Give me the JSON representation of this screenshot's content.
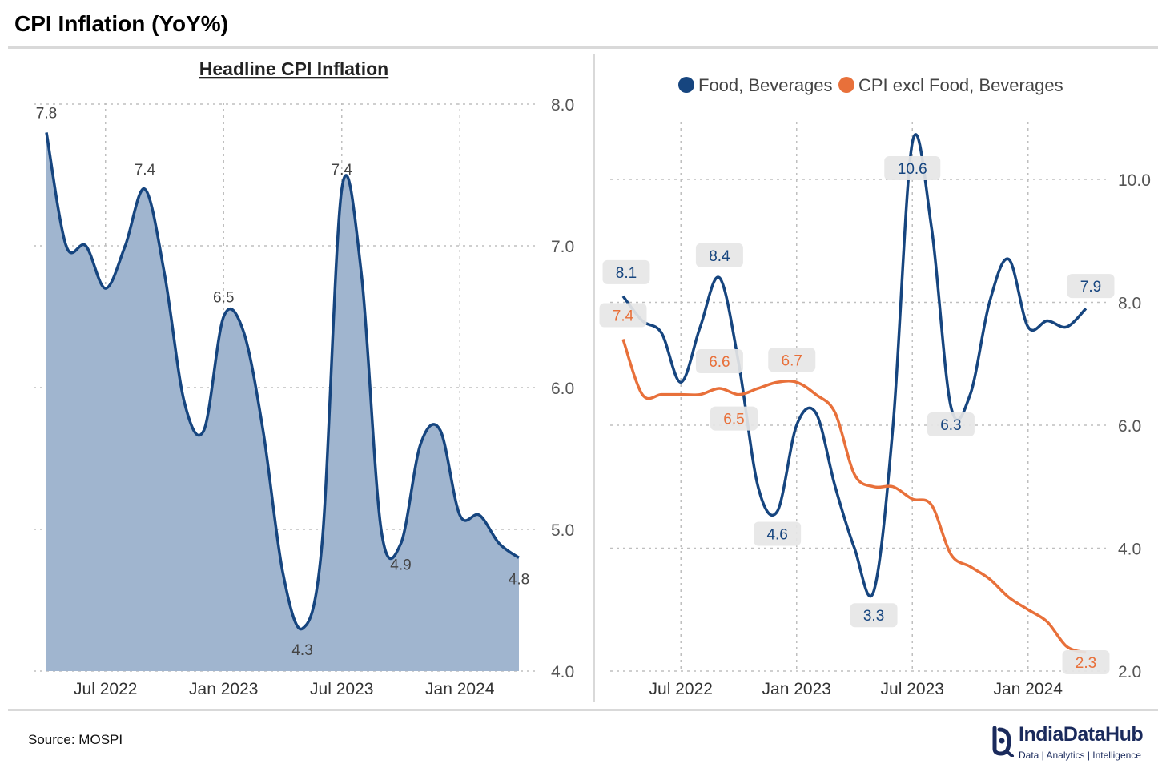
{
  "title": "CPI Inflation (YoY%)",
  "source": "Source: MOSPI",
  "brand": {
    "name": "IndiaDataHub",
    "tagline": "Data | Analytics | Intelligence"
  },
  "colors": {
    "navy": "#16457f",
    "orange": "#e8703a",
    "area_fill": "#a0b5cf",
    "grid": "#bfbfbf",
    "label_bg": "#e6e6e6",
    "tick_text": "#555555"
  },
  "chart_data": [
    {
      "type": "area",
      "title": "Headline CPI Inflation",
      "xlabel": "",
      "ylabel": "",
      "x": [
        "2022-04",
        "2022-05",
        "2022-06",
        "2022-07",
        "2022-08",
        "2022-09",
        "2022-10",
        "2022-11",
        "2022-12",
        "2023-01",
        "2023-02",
        "2023-03",
        "2023-04",
        "2023-05",
        "2023-06",
        "2023-07",
        "2023-08",
        "2023-09",
        "2023-10",
        "2023-11",
        "2023-12",
        "2024-01",
        "2024-02",
        "2024-03",
        "2024-04"
      ],
      "series": [
        {
          "values": [
            7.8,
            7.0,
            7.0,
            6.7,
            7.0,
            7.4,
            6.8,
            5.9,
            5.7,
            6.5,
            6.4,
            5.7,
            4.7,
            4.3,
            4.9,
            7.4,
            6.8,
            5.0,
            4.9,
            5.6,
            5.7,
            5.1,
            5.1,
            4.9,
            4.8
          ]
        }
      ],
      "data_labels": [
        {
          "x": "2022-04",
          "text": "7.8"
        },
        {
          "x": "2022-09",
          "text": "7.4"
        },
        {
          "x": "2023-01",
          "text": "6.5"
        },
        {
          "x": "2023-05",
          "text": "4.3"
        },
        {
          "x": "2023-07",
          "text": "7.4"
        },
        {
          "x": "2023-10",
          "text": "4.9"
        },
        {
          "x": "2024-04",
          "text": "4.8"
        }
      ],
      "x_ticks": [
        "Jul 2022",
        "Jan 2023",
        "Jul 2023",
        "Jan 2024"
      ],
      "y_ticks": [
        "4.0",
        "5.0",
        "6.0",
        "7.0",
        "8.0"
      ],
      "ylim": [
        4.0,
        8.0
      ],
      "y_axis_side": "right",
      "grid": true
    },
    {
      "type": "line",
      "legend_position": "top",
      "x": [
        "2022-04",
        "2022-05",
        "2022-06",
        "2022-07",
        "2022-08",
        "2022-09",
        "2022-10",
        "2022-11",
        "2022-12",
        "2023-01",
        "2023-02",
        "2023-03",
        "2023-04",
        "2023-05",
        "2023-06",
        "2023-07",
        "2023-08",
        "2023-09",
        "2023-10",
        "2023-11",
        "2023-12",
        "2024-01",
        "2024-02",
        "2024-03",
        "2024-04"
      ],
      "series": [
        {
          "name": "Food, Beverages",
          "color": "#16457f",
          "values": [
            8.1,
            7.7,
            7.5,
            6.7,
            7.6,
            8.4,
            7.0,
            5.0,
            4.6,
            6.0,
            6.2,
            5.0,
            4.0,
            3.3,
            6.0,
            10.6,
            9.2,
            6.3,
            6.5,
            8.0,
            8.7,
            7.6,
            7.7,
            7.6,
            7.9
          ],
          "data_labels": [
            {
              "x": "2022-04",
              "text": "8.1"
            },
            {
              "x": "2022-09",
              "text": "8.4"
            },
            {
              "x": "2022-12",
              "text": "4.6"
            },
            {
              "x": "2023-05",
              "text": "3.3"
            },
            {
              "x": "2023-07",
              "text": "10.6"
            },
            {
              "x": "2023-09",
              "text": "6.3"
            },
            {
              "x": "2024-04",
              "text": "7.9"
            }
          ]
        },
        {
          "name": "CPI excl Food, Beverages",
          "color": "#e8703a",
          "values": [
            7.4,
            6.5,
            6.5,
            6.5,
            6.5,
            6.6,
            6.5,
            6.6,
            6.7,
            6.7,
            6.5,
            6.2,
            5.2,
            5.0,
            5.0,
            4.8,
            4.7,
            3.9,
            3.7,
            3.5,
            3.2,
            3.0,
            2.8,
            2.4,
            2.3
          ],
          "data_labels": [
            {
              "x": "2022-04",
              "text": "7.4"
            },
            {
              "x": "2022-09",
              "text": "6.6"
            },
            {
              "x": "2022-10",
              "text": "6.5"
            },
            {
              "x": "2023-01",
              "text": "6.7"
            },
            {
              "x": "2024-04",
              "text": "2.3"
            }
          ]
        }
      ],
      "x_ticks": [
        "Jul 2022",
        "Jan 2023",
        "Jul 2023",
        "Jan 2024"
      ],
      "y_ticks": [
        "2.0",
        "4.0",
        "6.0",
        "8.0",
        "10.0"
      ],
      "ylim": [
        2.0,
        11.2
      ],
      "y_axis_side": "right",
      "grid": true
    }
  ]
}
